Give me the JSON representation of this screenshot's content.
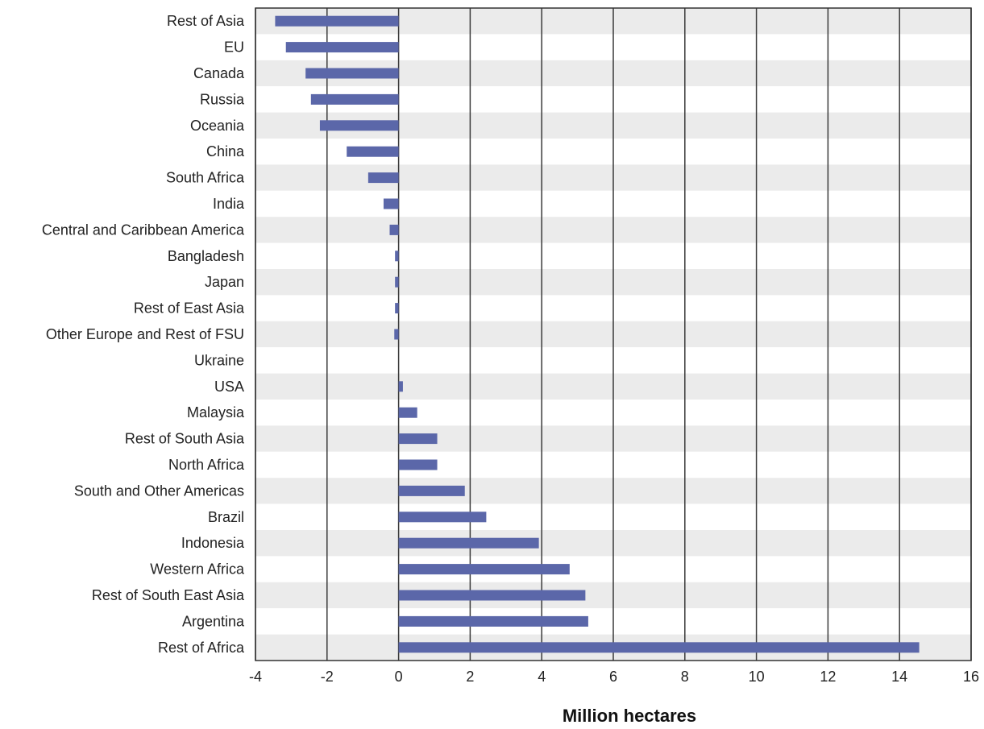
{
  "chart_data": {
    "type": "bar",
    "orientation": "horizontal",
    "categories": [
      "Rest of Asia",
      "EU",
      "Canada",
      "Russia",
      "Oceania",
      "China",
      "South Africa",
      "India",
      "Central and Caribbean America",
      "Bangladesh",
      "Japan",
      "Rest of East Asia",
      "Other Europe and Rest of FSU",
      "Ukraine",
      "USA",
      "Malaysia",
      "Rest of South Asia",
      "North Africa",
      "South and Other Americas",
      "Brazil",
      "Indonesia",
      "Western Africa",
      "Rest of South East Asia",
      "Argentina",
      "Rest of Africa"
    ],
    "values": [
      -3.45,
      -3.15,
      -2.6,
      -2.45,
      -2.2,
      -1.45,
      -0.85,
      -0.42,
      -0.25,
      -0.1,
      -0.1,
      -0.1,
      -0.12,
      0.0,
      0.12,
      0.52,
      1.08,
      1.08,
      1.85,
      2.45,
      3.92,
      4.78,
      5.22,
      5.3,
      14.55
    ],
    "xlim": [
      -4,
      16
    ],
    "xticks": [
      -4,
      -2,
      0,
      2,
      4,
      6,
      8,
      10,
      12,
      14,
      16
    ],
    "xtick_labels": [
      "-4",
      "-2",
      "0",
      "2",
      "4",
      "6",
      "8",
      "10",
      "12",
      "14",
      "16"
    ],
    "xlabel": "Million hectares",
    "ylabel": "",
    "title": "",
    "grid": "vertical",
    "legend": "none",
    "colors": {
      "bar": "#5b67a9",
      "band_shaded": "#ebebeb",
      "band_plain": "#ffffff",
      "gridline": "#3a3a3a",
      "frame": "#333333"
    }
  }
}
